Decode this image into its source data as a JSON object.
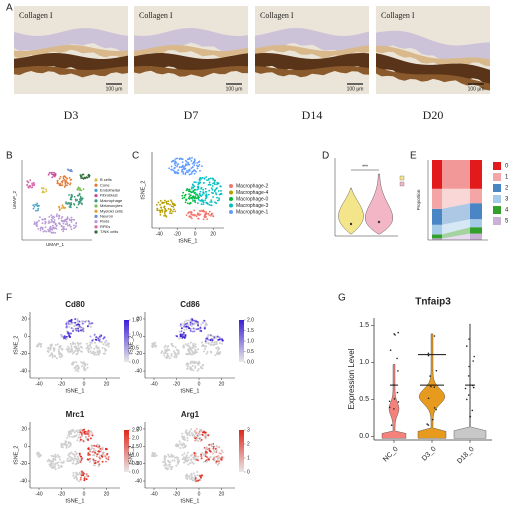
{
  "figure": {
    "A": {
      "label": "A",
      "images": [
        {
          "stain": "Collagen I",
          "scale_bar": "100 μm",
          "caption": "D3"
        },
        {
          "stain": "Collagen I",
          "scale_bar": "100 μm",
          "caption": "D7"
        },
        {
          "stain": "Collagen I",
          "scale_bar": "100 μm",
          "caption": "D14"
        },
        {
          "stain": "Collagen I",
          "scale_bar": "100 μm",
          "caption": "D20"
        }
      ]
    },
    "B": {
      "label": "B",
      "x_label": "UMAP_1",
      "y_label": "UMAP_2",
      "legend": [
        "B cells",
        "Cone",
        "Endothelial",
        "Fibroblast",
        "Macrophage",
        "Melanocytes",
        "Myeloid cells",
        "Neuron",
        "Rods",
        "RPEs",
        "T/NK cells"
      ],
      "colors": [
        "#d4c14a",
        "#e07b39",
        "#4aa3c8",
        "#c44e9e",
        "#3b9a7a",
        "#7bbf5a",
        "#e8a030",
        "#6b8fd6",
        "#b89ad6",
        "#d966a8",
        "#2f6b3a"
      ]
    },
    "C": {
      "label": "C",
      "x_label": "tSNE_1",
      "y_label": "tSNE_2",
      "xticks": [
        -40,
        -20,
        0,
        20
      ],
      "xlim": [
        -48,
        32
      ],
      "legend": [
        "Macrophage-2",
        "Macrophage-4",
        "Macrophage-0",
        "Macrophage-3",
        "Macrophage-1"
      ],
      "colors": [
        "#f2766e",
        "#b79f00",
        "#00ba38",
        "#00bfc4",
        "#619cff"
      ]
    },
    "D": {
      "label": "D",
      "significance": "***",
      "colors": [
        "#f5e58a",
        "#f2b6c6"
      ]
    },
    "E": {
      "label": "E",
      "y_label": "Proportion",
      "legend": [
        "0",
        "1",
        "2",
        "3",
        "4",
        "5"
      ],
      "colors": [
        "#e31a1c",
        "#f4a6a6",
        "#4a86c5",
        "#a6cbe8",
        "#33a02c",
        "#cab2d6"
      ]
    },
    "F": {
      "label": "F",
      "x_label": "tSNE_1",
      "y_label": "tSNE_2",
      "xticks": [
        -40,
        -20,
        0,
        20
      ],
      "yticks": [
        -40,
        -20,
        0,
        20
      ],
      "xlim": [
        -48,
        32
      ],
      "ylim": [
        -48,
        28
      ],
      "plots": [
        {
          "gene": "Cd80",
          "color": "#3b1fd6",
          "colorbar_ticks": [
            {
              "value": 0,
              "label": "0.0"
            },
            0.5,
            {
              "value": 1,
              "label": "1.0"
            },
            1.5
          ]
        },
        {
          "gene": "Cd86",
          "color": "#3b1fd6",
          "colorbar_ticks": [
            {
              "value": 0,
              "label": "0.0"
            },
            0.5,
            {
              "value": 1,
              "label": "1.0"
            },
            1.5,
            {
              "value": 2,
              "label": "2.0"
            }
          ]
        },
        {
          "gene": "Mrc1",
          "color": "#e0261b",
          "colorbar_ticks": [
            {
              "value": 0,
              "label": "0.0"
            },
            0.5,
            {
              "value": 1,
              "label": "1.0"
            },
            1.5,
            {
              "value": 2,
              "label": "2.0"
            },
            2.5
          ]
        },
        {
          "gene": "Arg1",
          "color": "#e0261b",
          "colorbar_ticks": [
            0,
            1,
            2,
            3
          ]
        }
      ]
    },
    "G": {
      "label": "G",
      "title": "Tnfaip3",
      "y_label": "Expression Level",
      "categories": [
        "NC_0",
        "D3_0",
        "D18_0"
      ],
      "colors": [
        "#f4827a",
        "#e69a1e",
        "#c8c8c8"
      ],
      "ylim": [
        -0.05,
        1.6
      ],
      "yticks": [
        {
          "value": 0,
          "label": "0.0"
        },
        0.5,
        {
          "value": 1,
          "label": "1.0"
        },
        1.5
      ]
    }
  }
}
